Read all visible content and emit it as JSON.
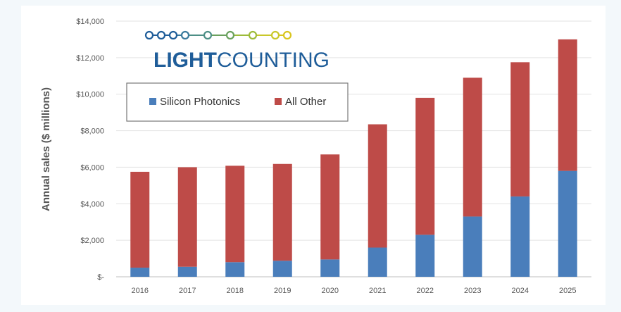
{
  "logo": {
    "bold": "LIGHT",
    "regular": "COUNTING",
    "dot_colors": [
      "#1f5d99",
      "#1f5d99",
      "#1f5d99",
      "#3a7a9c",
      "#4d8f86",
      "#6aa15e",
      "#9dbb3a",
      "#c9c82a",
      "#d9c51e"
    ]
  },
  "chart_data": {
    "type": "bar",
    "stacked": true,
    "categories": [
      "2016",
      "2017",
      "2018",
      "2019",
      "2020",
      "2021",
      "2022",
      "2023",
      "2024",
      "2025"
    ],
    "series": [
      {
        "name": "Silicon Photonics",
        "color": "#4a7ebb",
        "values": [
          500,
          550,
          800,
          880,
          950,
          1600,
          2300,
          3300,
          4400,
          5800
        ]
      },
      {
        "name": "All Other",
        "color": "#be4b48",
        "values": [
          5250,
          5450,
          5280,
          5300,
          5750,
          6750,
          7500,
          7600,
          7350,
          7200
        ]
      }
    ],
    "ylabel": "Annual sales ($ millions)",
    "ylim": [
      0,
      14000
    ],
    "yticks": [
      {
        "value": 0,
        "label": "$-"
      },
      {
        "value": 2000,
        "label": "$2,000"
      },
      {
        "value": 4000,
        "label": "$4,000"
      },
      {
        "value": 6000,
        "label": "$6,000"
      },
      {
        "value": 8000,
        "label": "$8,000"
      },
      {
        "value": 10000,
        "label": "$10,000"
      },
      {
        "value": 12000,
        "label": "$12,000"
      },
      {
        "value": 14000,
        "label": "$14,000"
      }
    ],
    "grid": true,
    "legend": "top-left"
  }
}
